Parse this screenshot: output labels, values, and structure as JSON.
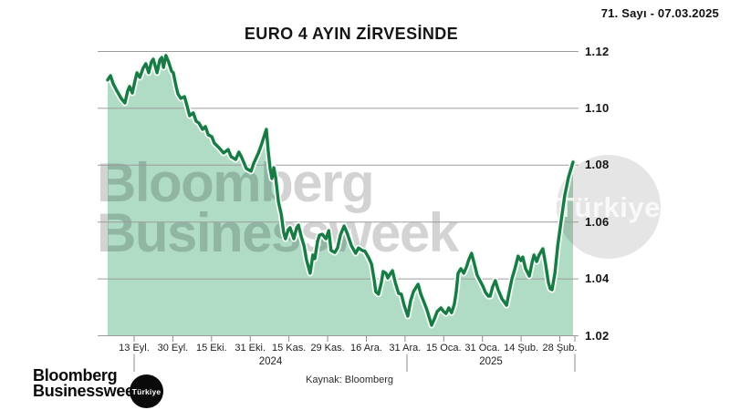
{
  "meta": {
    "issue": "71. Sayı - 07.03.2025"
  },
  "title": "EURO 4 AYIN ZİRVESİNDE",
  "source": "Kaynak: Bloomberg",
  "watermark": {
    "line1": "Bloomberg",
    "line2": "Businessweek",
    "badge": "Türkiye"
  },
  "logo": {
    "line1": "Bloomberg",
    "line2": "Businessweek",
    "badge": "Türkiye"
  },
  "colors": {
    "line": "#187a44",
    "line_halo": "#f2faf5",
    "fill": "#b0dbc5",
    "grid": "#9c9c9c",
    "axis": "#8c8c8c",
    "text": "#141414",
    "logo_bg": "#0a0a0a"
  },
  "chart_data": {
    "type": "area",
    "title": "EURO 4 AYIN ZİRVESİNDE",
    "xlabel": "",
    "ylabel": "",
    "ylim": [
      1.02,
      1.12
    ],
    "grid": true,
    "legend": false,
    "y_ticks": [
      "1.12",
      "1.10",
      "1.08",
      "1.06",
      "1.04",
      "1.02"
    ],
    "x_ticks": [
      "13 Eyl.",
      "30 Eyl.",
      "15 Eki.",
      "31 Eki.",
      "15 Kas.",
      "29 Kas.",
      "16 Ara.",
      "31 Ara.",
      "15 Oca.",
      "31 Oca.",
      "14 Şub.",
      "28 Şub."
    ],
    "year_labels": [
      "2024",
      "2025"
    ],
    "points": [
      [
        0.0,
        1.11
      ],
      [
        0.006,
        1.1115
      ],
      [
        0.012,
        1.1086
      ],
      [
        0.02,
        1.1061
      ],
      [
        0.029,
        1.1035
      ],
      [
        0.037,
        1.1019
      ],
      [
        0.043,
        1.1061
      ],
      [
        0.047,
        1.1077
      ],
      [
        0.053,
        1.1054
      ],
      [
        0.059,
        1.1099
      ],
      [
        0.063,
        1.1125
      ],
      [
        0.069,
        1.1109
      ],
      [
        0.076,
        1.1141
      ],
      [
        0.082,
        1.1157
      ],
      [
        0.088,
        1.1125
      ],
      [
        0.094,
        1.1163
      ],
      [
        0.098,
        1.1173
      ],
      [
        0.102,
        1.115
      ],
      [
        0.106,
        1.1125
      ],
      [
        0.112,
        1.117
      ],
      [
        0.116,
        1.1179
      ],
      [
        0.12,
        1.1144
      ],
      [
        0.125,
        1.1186
      ],
      [
        0.131,
        1.1163
      ],
      [
        0.137,
        1.1131
      ],
      [
        0.141,
        1.1125
      ],
      [
        0.147,
        1.1077
      ],
      [
        0.151,
        1.1051
      ],
      [
        0.157,
        1.1035
      ],
      [
        0.165,
        1.1041
      ],
      [
        0.171,
        1.1006
      ],
      [
        0.176,
        1.0974
      ],
      [
        0.184,
        1.0984
      ],
      [
        0.19,
        1.0955
      ],
      [
        0.196,
        1.0948
      ],
      [
        0.204,
        1.0926
      ],
      [
        0.21,
        1.0936
      ],
      [
        0.216,
        1.0907
      ],
      [
        0.224,
        1.09
      ],
      [
        0.229,
        1.0878
      ],
      [
        0.239,
        1.0862
      ],
      [
        0.249,
        1.0843
      ],
      [
        0.259,
        1.0855
      ],
      [
        0.265,
        1.083
      ],
      [
        0.275,
        1.082
      ],
      [
        0.282,
        1.0846
      ],
      [
        0.288,
        1.0827
      ],
      [
        0.298,
        1.0788
      ],
      [
        0.308,
        1.0779
      ],
      [
        0.314,
        1.0807
      ],
      [
        0.324,
        1.0843
      ],
      [
        0.331,
        1.0875
      ],
      [
        0.341,
        1.0926
      ],
      [
        0.345,
        1.0852
      ],
      [
        0.349,
        1.0788
      ],
      [
        0.353,
        1.0753
      ],
      [
        0.357,
        1.0791
      ],
      [
        0.361,
        1.0756
      ],
      [
        0.367,
        1.067
      ],
      [
        0.373,
        1.0628
      ],
      [
        0.378,
        1.0564
      ],
      [
        0.382,
        1.0541
      ],
      [
        0.388,
        1.0573
      ],
      [
        0.392,
        1.058
      ],
      [
        0.4,
        1.0541
      ],
      [
        0.406,
        1.058
      ],
      [
        0.41,
        1.0589
      ],
      [
        0.416,
        1.0548
      ],
      [
        0.422,
        1.0516
      ],
      [
        0.427,
        1.0468
      ],
      [
        0.435,
        1.042
      ],
      [
        0.441,
        1.0484
      ],
      [
        0.445,
        1.0471
      ],
      [
        0.451,
        1.0532
      ],
      [
        0.455,
        1.0554
      ],
      [
        0.461,
        1.0557
      ],
      [
        0.469,
        1.0541
      ],
      [
        0.475,
        1.057
      ],
      [
        0.48,
        1.05
      ],
      [
        0.488,
        1.0493
      ],
      [
        0.494,
        1.0509
      ],
      [
        0.5,
        1.0554
      ],
      [
        0.508,
        1.0586
      ],
      [
        0.514,
        1.0564
      ],
      [
        0.524,
        1.0516
      ],
      [
        0.533,
        1.049
      ],
      [
        0.539,
        1.0509
      ],
      [
        0.547,
        1.05
      ],
      [
        0.553,
        1.0497
      ],
      [
        0.561,
        1.0474
      ],
      [
        0.567,
        1.0452
      ],
      [
        0.573,
        1.0394
      ],
      [
        0.576,
        1.0355
      ],
      [
        0.582,
        1.0346
      ],
      [
        0.588,
        1.0387
      ],
      [
        0.592,
        1.0426
      ],
      [
        0.598,
        1.042
      ],
      [
        0.602,
        1.0403
      ],
      [
        0.608,
        1.042
      ],
      [
        0.612,
        1.0429
      ],
      [
        0.618,
        1.0387
      ],
      [
        0.625,
        1.0349
      ],
      [
        0.631,
        1.0346
      ],
      [
        0.637,
        1.0307
      ],
      [
        0.645,
        1.0269
      ],
      [
        0.651,
        1.0323
      ],
      [
        0.657,
        1.0355
      ],
      [
        0.663,
        1.0371
      ],
      [
        0.667,
        1.0381
      ],
      [
        0.673,
        1.0346
      ],
      [
        0.68,
        1.0317
      ],
      [
        0.686,
        1.0291
      ],
      [
        0.692,
        1.0259
      ],
      [
        0.696,
        1.0237
      ],
      [
        0.702,
        1.0259
      ],
      [
        0.708,
        1.0285
      ],
      [
        0.716,
        1.0298
      ],
      [
        0.722,
        1.0285
      ],
      [
        0.727,
        1.0278
      ],
      [
        0.733,
        1.0298
      ],
      [
        0.739,
        1.0281
      ],
      [
        0.745,
        1.0311
      ],
      [
        0.749,
        1.0355
      ],
      [
        0.753,
        1.042
      ],
      [
        0.759,
        1.0436
      ],
      [
        0.765,
        1.042
      ],
      [
        0.771,
        1.0442
      ],
      [
        0.776,
        1.0468
      ],
      [
        0.782,
        1.049
      ],
      [
        0.788,
        1.0452
      ],
      [
        0.794,
        1.0413
      ],
      [
        0.8,
        1.0394
      ],
      [
        0.806,
        1.0375
      ],
      [
        0.812,
        1.0352
      ],
      [
        0.818,
        1.0339
      ],
      [
        0.822,
        1.0339
      ],
      [
        0.827,
        1.0371
      ],
      [
        0.833,
        1.0394
      ],
      [
        0.839,
        1.0362
      ],
      [
        0.847,
        1.033
      ],
      [
        0.853,
        1.0317
      ],
      [
        0.857,
        1.0307
      ],
      [
        0.863,
        1.0355
      ],
      [
        0.869,
        1.0403
      ],
      [
        0.875,
        1.0436
      ],
      [
        0.882,
        1.048
      ],
      [
        0.888,
        1.0464
      ],
      [
        0.892,
        1.0477
      ],
      [
        0.898,
        1.0436
      ],
      [
        0.906,
        1.041
      ],
      [
        0.912,
        1.0458
      ],
      [
        0.916,
        1.0484
      ],
      [
        0.922,
        1.0461
      ],
      [
        0.927,
        1.0484
      ],
      [
        0.935,
        1.0506
      ],
      [
        0.941,
        1.0452
      ],
      [
        0.947,
        1.0387
      ],
      [
        0.951,
        1.0365
      ],
      [
        0.955,
        1.0362
      ],
      [
        0.961,
        1.042
      ],
      [
        0.967,
        1.0516
      ],
      [
        0.975,
        1.0612
      ],
      [
        0.982,
        1.0692
      ],
      [
        0.99,
        1.0756
      ],
      [
        1.0,
        1.0811
      ]
    ]
  }
}
